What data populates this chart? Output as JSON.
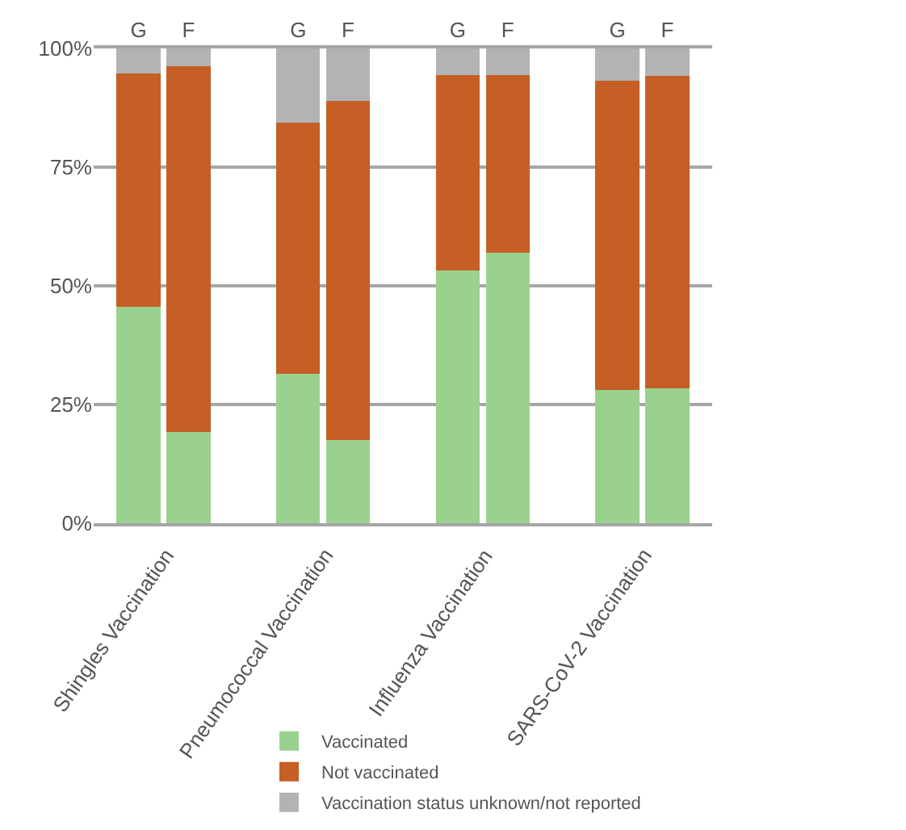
{
  "chart_data": {
    "type": "bar",
    "stacked": true,
    "categories": [
      "G",
      "F",
      "G",
      "F",
      "G",
      "F",
      "G",
      "F"
    ],
    "series": [
      {
        "name": "Vaccinated",
        "color": "#9bd18f",
        "values": [
          45.5,
          19.2,
          31.4,
          17.5,
          53.3,
          56.9,
          28,
          28.4
        ]
      },
      {
        "name": "Not vaccinated",
        "color": "#c55f25",
        "values": [
          49.2,
          77,
          52.9,
          71.5,
          41.1,
          37.5,
          65.2,
          65.8
        ]
      },
      {
        "name": "Vaccination status unknown/not reported",
        "color": "#b3b3b3",
        "values": [
          5.3,
          3.8,
          15.7,
          11,
          5.6,
          5.6,
          6.8,
          5.8
        ]
      }
    ],
    "annotations": [
      "Shingles Vaccination",
      "Pneumococcal Vaccination",
      "Influenza Vaccination",
      "SARS-CoV-2 Vaccination"
    ],
    "ylim": [
      0,
      100
    ],
    "yticks": [
      {
        "value": 0,
        "label": "0%"
      },
      {
        "value": 25,
        "label": "25%"
      },
      {
        "value": 50,
        "label": "50%"
      },
      {
        "value": 75,
        "label": "75%"
      },
      {
        "value": 100,
        "label": "100%"
      }
    ],
    "grid": "y",
    "legend": "bottom"
  }
}
